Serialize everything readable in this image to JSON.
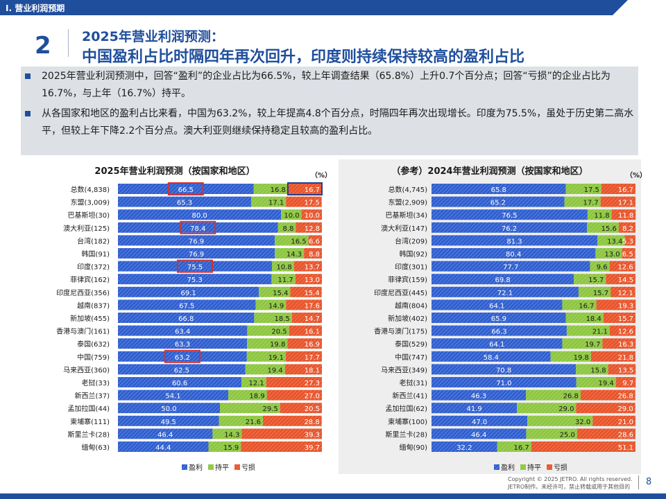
{
  "section_tab": "Ⅰ. 营业利润预期",
  "slide_number": "2",
  "title_line1": "2025年营业利润预测：",
  "title_line2": "中国盈利占比时隔四年再次回升，印度则持续保持较高的盈利占比",
  "bullets": [
    "2025年营业利润预测中，回答“盈利”的企业占比为66.5%，较上年调查结果（65.8%）上升0.7个百分点；回答“亏损”的企业占比为16.7%，与上年（16.7%）持平。",
    "从各国家和地区的盈利占比来看，中国为63.2%，较上年提高4.8个百分点，时隔四年再次出现增长。印度为75.5%，虽处于历史第二高水平，但较上年下降2.2个百分点。澳大利亚则继续保持稳定且较高的盈利占比。"
  ],
  "colors": {
    "brand": "#1f4e9c",
    "profit": "#2f5fd0",
    "flat": "#8dc63f",
    "loss": "#e8542a",
    "highlight_red": "#d0312d",
    "highlight_blue": "#1f3f8f"
  },
  "icons": {
    "bullet": "square-bullet-icon",
    "legend_profit": "blue-square-icon",
    "legend_flat": "green-square-icon",
    "legend_loss": "orange-square-icon"
  },
  "chart_data": [
    {
      "type": "bar",
      "orientation": "horizontal-stacked-100",
      "title": "2025年营业利润预测（按国家和地区）",
      "unit": "（%）",
      "series_names": [
        "盈利",
        "持平",
        "亏损"
      ],
      "categories": [
        "总数(4,838)",
        "东盟(3,009)",
        "巴基斯坦(30)",
        "澳大利亚(125)",
        "台湾(182)",
        "韩国(91)",
        "印度(372)",
        "菲律宾(162)",
        "印度尼西亚(356)",
        "越南(837)",
        "新加坡(455)",
        "香港与澳门(161)",
        "泰国(632)",
        "中国(759)",
        "马来西亚(360)",
        "老挝(33)",
        "新西兰(37)",
        "孟加拉国(44)",
        "柬埔寨(111)",
        "斯里兰卡(28)",
        "缅甸(63)"
      ],
      "series": [
        {
          "name": "盈利",
          "values": [
            66.5,
            65.3,
            80.0,
            78.4,
            76.9,
            76.9,
            75.5,
            75.3,
            69.1,
            67.5,
            66.8,
            63.4,
            63.3,
            63.2,
            62.5,
            60.6,
            54.1,
            50.0,
            49.5,
            46.4,
            44.4
          ]
        },
        {
          "name": "持平",
          "values": [
            16.8,
            17.1,
            10.0,
            8.8,
            16.5,
            14.3,
            10.8,
            11.7,
            15.4,
            14.9,
            18.5,
            20.5,
            19.8,
            19.1,
            19.4,
            12.1,
            18.9,
            29.5,
            21.6,
            14.3,
            15.9
          ]
        },
        {
          "name": "亏损",
          "values": [
            16.7,
            17.5,
            10.0,
            12.8,
            6.6,
            8.8,
            13.7,
            13.0,
            15.4,
            17.6,
            14.7,
            16.1,
            16.9,
            17.7,
            18.1,
            27.3,
            27.0,
            20.5,
            28.8,
            39.3,
            39.7
          ]
        }
      ],
      "labels": {
        "profit": [
          "66.5",
          "65.3",
          "80.0",
          "78.4",
          "76.9",
          "76.9",
          "75.5",
          "75.3",
          "69.1",
          "67.5",
          "66.8",
          "63.4",
          "63.3",
          "63.2",
          "62.5",
          "60.6",
          "54.1",
          "50.0",
          "49.5",
          "46.4",
          "44.4"
        ],
        "flat": [
          "16.8",
          "17.1",
          "10.0",
          "8.8",
          "16.5",
          "14.3",
          "10.8",
          "11.7",
          "15.4",
          "14.9",
          "18.5",
          "20.5",
          "19.8",
          "19.1",
          "19.4",
          "12.1",
          "18.9",
          "29.5",
          "21.6",
          "14.3",
          "15.9"
        ],
        "loss": [
          "16.7",
          "17.5",
          "10.0",
          "12.8",
          "6.6",
          "8.8",
          "13.7",
          "13.0",
          "15.4",
          "17.6",
          "14.7",
          "16.1",
          "16.9",
          "17.7",
          "18.1",
          "27.3",
          "27.0",
          "20.5",
          "28.8",
          "39.3",
          "39.7"
        ]
      },
      "highlighted_profit_categories": [
        "总数(4,838)",
        "澳大利亚(125)",
        "印度(372)",
        "中国(759)"
      ],
      "highlighted_loss_categories": [
        "总数(4,838)"
      ],
      "legend": "bottom"
    },
    {
      "type": "bar",
      "orientation": "horizontal-stacked-100",
      "title": "（参考）2024年营业利润预测（按国家和地区）",
      "unit": "（%）",
      "series_names": [
        "盈利",
        "持平",
        "亏损"
      ],
      "categories": [
        "总数(4,745)",
        "东盟(2,909)",
        "巴基斯坦(34)",
        "澳大利亚(147)",
        "台湾(209)",
        "韩国(92)",
        "印度(301)",
        "菲律宾(159)",
        "印度尼西亚(445)",
        "越南(804)",
        "新加坡(402)",
        "香港与澳门(175)",
        "泰国(529)",
        "中国(747)",
        "马来西亚(349)",
        "老挝(31)",
        "新西兰(41)",
        "孟加拉国(62)",
        "柬埔寨(100)",
        "斯里兰卡(28)",
        "缅甸(90)"
      ],
      "series": [
        {
          "name": "盈利",
          "values": [
            65.8,
            65.2,
            76.5,
            76.2,
            81.3,
            80.4,
            77.7,
            69.8,
            72.1,
            64.1,
            65.9,
            66.3,
            64.1,
            58.4,
            70.8,
            71.0,
            46.3,
            41.9,
            47.0,
            46.4,
            32.2
          ]
        },
        {
          "name": "持平",
          "values": [
            17.5,
            17.7,
            11.8,
            15.6,
            13.4,
            13.0,
            9.6,
            15.7,
            15.7,
            16.7,
            18.4,
            21.1,
            19.7,
            19.8,
            15.8,
            19.4,
            26.8,
            29.0,
            32.0,
            25.0,
            16.7
          ]
        },
        {
          "name": "亏损",
          "values": [
            16.7,
            17.1,
            11.8,
            8.2,
            5.3,
            6.5,
            12.6,
            14.5,
            12.1,
            19.3,
            15.7,
            12.6,
            16.3,
            21.8,
            13.5,
            9.7,
            26.8,
            29.0,
            21.0,
            28.6,
            51.1
          ]
        }
      ],
      "labels": {
        "profit": [
          "65.8",
          "65.2",
          "76.5",
          "76.2",
          "81.3",
          "80.4",
          "77.7",
          "69.8",
          "72.1",
          "64.1",
          "65.9",
          "66.3",
          "64.1",
          "58.4",
          "70.8",
          "71.0",
          "46.3",
          "41.9",
          "47.0",
          "46.4",
          "32.2"
        ],
        "flat": [
          "17.5",
          "17.7",
          "11.8",
          "15.6",
          "13.4",
          "13.0",
          "9.6",
          "15.7",
          "15.7",
          "16.7",
          "18.4",
          "21.1",
          "19.7",
          "19.8",
          "15.8",
          "19.4",
          "26.8",
          "29.0",
          "32.0",
          "25.0",
          "16.7"
        ],
        "loss": [
          "16.7",
          "17.1",
          "11.8",
          "8.2",
          "5.3",
          "6.5",
          "12.6",
          "14.5",
          "12.1",
          "19.3",
          "15.7",
          "12.6",
          "16.3",
          "21.8",
          "13.5",
          "9.7",
          "26.8",
          "29.0",
          "21.0",
          "28.6",
          "51.1"
        ]
      },
      "highlighted_profit_categories": [],
      "highlighted_loss_categories": [],
      "legend": "bottom"
    }
  ],
  "footer": {
    "copyright": "Copyright © 2025 JETRO. All rights reserved.",
    "notice": "JETRO制作。未经许可，禁止转载或用于其他目的",
    "page": "8"
  }
}
